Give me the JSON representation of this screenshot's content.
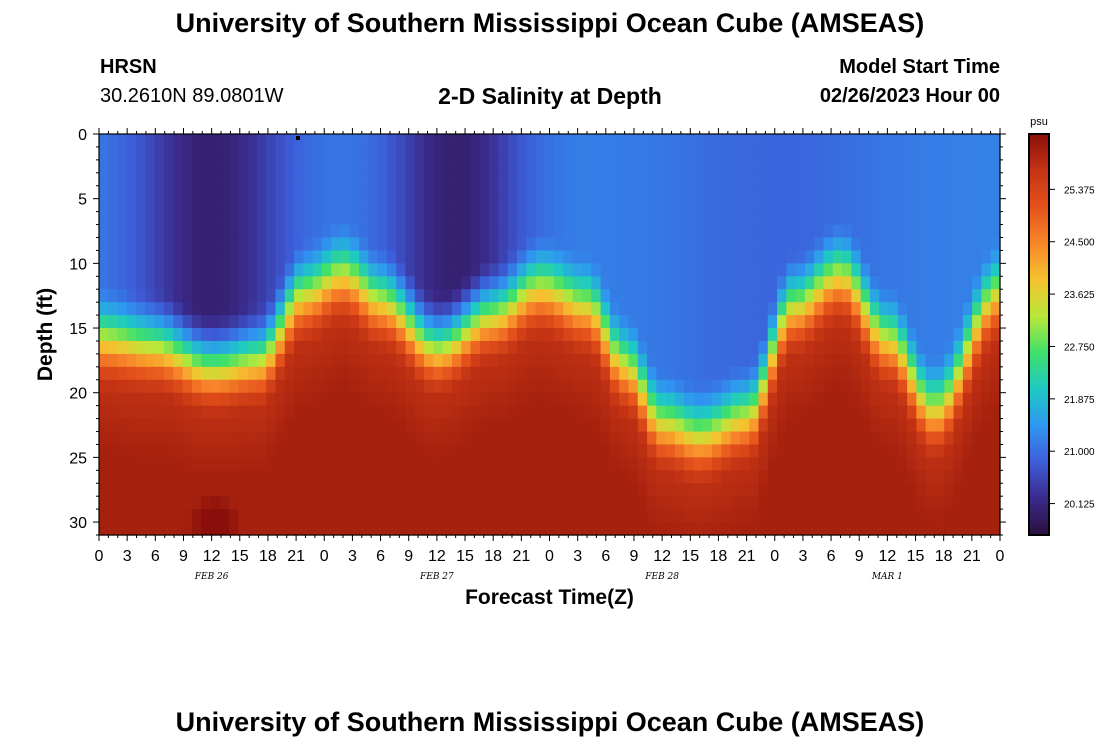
{
  "header": {
    "title": "University of Southern Mississippi Ocean Cube (AMSEAS)",
    "station": "HRSN",
    "coordinates": "30.2610N  89.0801W",
    "subtitle": "2-D Salinity at Depth",
    "model_start_label": "Model Start Time",
    "model_start_value": "02/26/2023 Hour 00"
  },
  "footer": {
    "title": "University of Southern Mississippi Ocean Cube (AMSEAS)"
  },
  "chart_data": {
    "type": "heatmap",
    "title": "2-D Salinity at Depth",
    "xlabel": "Forecast Time(Z)",
    "ylabel": "Depth (ft)",
    "x_range_hours": [
      0,
      96
    ],
    "y_range_ft": [
      0,
      31
    ],
    "x_tick_labels": [
      "0",
      "3",
      "6",
      "9",
      "12",
      "15",
      "18",
      "21",
      "0",
      "3",
      "6",
      "9",
      "12",
      "15",
      "18",
      "21",
      "0",
      "3",
      "6",
      "9",
      "12",
      "15",
      "18",
      "21",
      "0",
      "3",
      "6",
      "9",
      "12",
      "15",
      "18",
      "21",
      "0"
    ],
    "y_ticks": [
      0,
      5,
      10,
      15,
      20,
      25,
      30
    ],
    "date_labels": [
      {
        "hour": 12,
        "label": "FEB 26"
      },
      {
        "hour": 36,
        "label": "FEB 27"
      },
      {
        "hour": 60,
        "label": "FEB 28"
      },
      {
        "hour": 84,
        "label": "MAR 1"
      }
    ],
    "colorbar": {
      "unit": "psu",
      "range": [
        19.6,
        26.3
      ],
      "ticks": [
        "25.375",
        "24.500",
        "23.625",
        "22.750",
        "21.875",
        "21.000",
        "20.125"
      ],
      "colors": [
        "#2a0f3e",
        "#3b2a8a",
        "#3d5dd9",
        "#2f96f0",
        "#1ec9c4",
        "#3fe06a",
        "#b9e83a",
        "#f5c22f",
        "#f8862a",
        "#e5521c",
        "#c43414",
        "#8a0f0a"
      ]
    },
    "halocline_depth_ft": {
      "hours": [
        0,
        6,
        12,
        17,
        22,
        26,
        30,
        36,
        42,
        47,
        52,
        56,
        60,
        64,
        69,
        74,
        79,
        84,
        89,
        96
      ],
      "depth": [
        16.5,
        17.0,
        18.5,
        18.0,
        13.0,
        11.5,
        13.5,
        17.0,
        14.5,
        12.5,
        14.0,
        18.5,
        23.0,
        24.0,
        22.5,
        14.0,
        11.5,
        16.5,
        22.0,
        13.0
      ]
    },
    "notes": [
      "Fresh surface layer (~20 psu) near surface at hours 6-22 and 31-45",
      "Saline bottom water (~25.5-26 psu) below the halocline; local maximum near hour 12 at 30 ft"
    ]
  }
}
